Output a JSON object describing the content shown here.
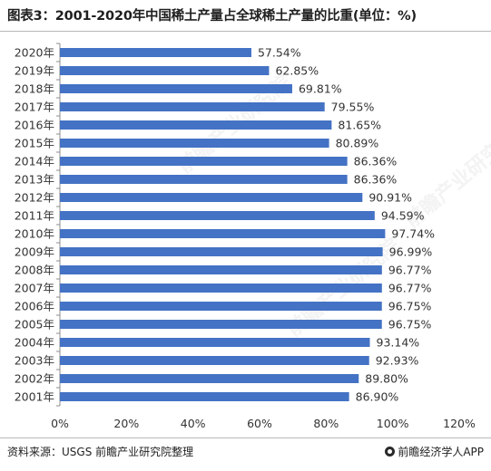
{
  "header": {
    "title": "图表3：2001-2020年中国稀土产量占全球稀土产量的比重(单位：%)"
  },
  "footer": {
    "source": "资料来源：USGS 前瞻产业研究院整理",
    "brand": "前瞻经济学人APP"
  },
  "watermark": {
    "text": "前瞻产业研究院"
  },
  "colors": {
    "bar": "#4472C4",
    "axis": "#8c8c8c",
    "text": "#333333"
  },
  "chart_data": {
    "type": "bar",
    "orientation": "horizontal",
    "title": "图表3：2001-2020年中国稀土产量占全球稀土产量的比重(单位：%)",
    "categories": [
      "2020年",
      "2019年",
      "2018年",
      "2017年",
      "2016年",
      "2015年",
      "2014年",
      "2013年",
      "2012年",
      "2011年",
      "2010年",
      "2009年",
      "2008年",
      "2007年",
      "2006年",
      "2005年",
      "2004年",
      "2003年",
      "2002年",
      "2001年"
    ],
    "values": [
      57.54,
      62.85,
      69.81,
      79.55,
      81.65,
      80.89,
      86.36,
      86.36,
      90.91,
      94.59,
      97.74,
      96.99,
      96.77,
      96.77,
      96.75,
      96.75,
      93.14,
      92.93,
      89.8,
      86.9
    ],
    "value_labels": [
      "57.54%",
      "62.85%",
      "69.81%",
      "79.55%",
      "81.65%",
      "80.89%",
      "86.36%",
      "86.36%",
      "90.91%",
      "94.59%",
      "97.74%",
      "96.99%",
      "96.77%",
      "96.77%",
      "96.75%",
      "96.75%",
      "93.14%",
      "92.93%",
      "89.80%",
      "86.90%"
    ],
    "xlim": [
      0,
      120
    ],
    "xticks": [
      0,
      20,
      40,
      60,
      80,
      100,
      120
    ],
    "xtick_labels": [
      "0%",
      "20%",
      "40%",
      "60%",
      "80%",
      "100%",
      "120%"
    ],
    "grid": false,
    "legend": "none"
  }
}
